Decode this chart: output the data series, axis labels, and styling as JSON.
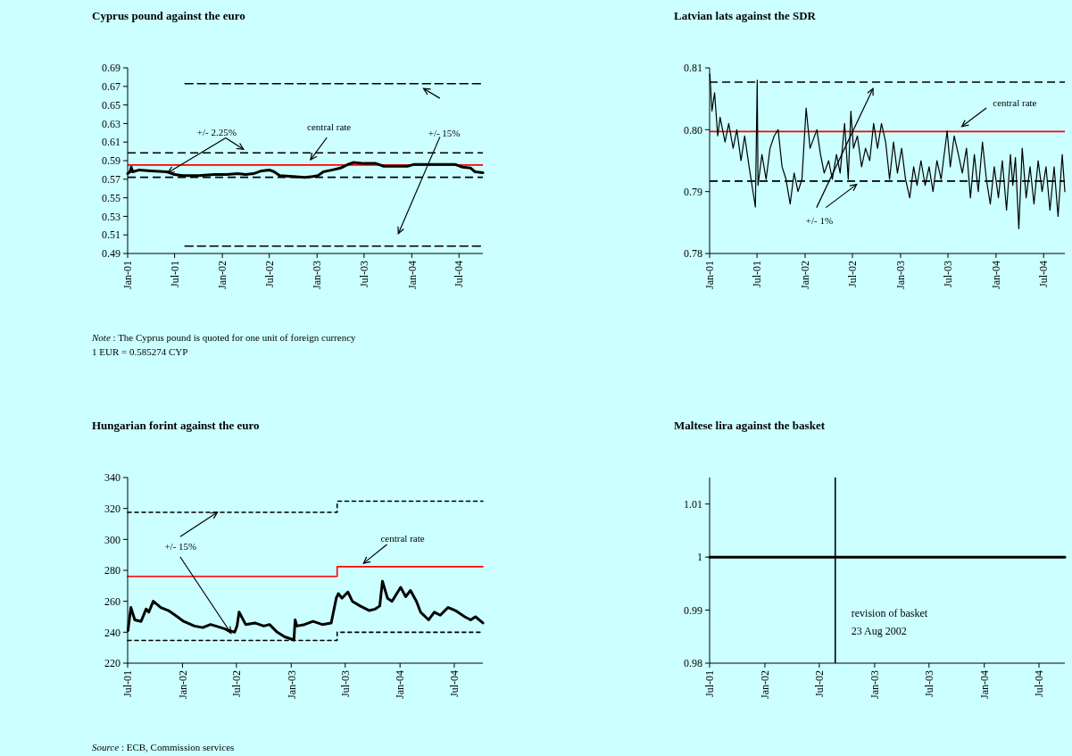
{
  "chart_data": [
    {
      "type": "line",
      "title": "Cyprus pound against the euro",
      "xlim": [
        "2001-01-01",
        "2004-10-01"
      ],
      "ylim": [
        0.49,
        0.69
      ],
      "yticks": [
        0.49,
        0.51,
        0.53,
        0.55,
        0.57,
        0.59,
        0.61,
        0.63,
        0.65,
        0.67,
        0.69
      ],
      "xticks": [
        {
          "value": "2001-01-01",
          "label": "Jan-01"
        },
        {
          "value": "2001-07-01",
          "label": "Jul-01"
        },
        {
          "value": "2002-01-01",
          "label": "Jan-02"
        },
        {
          "value": "2002-07-01",
          "label": "Jul-02"
        },
        {
          "value": "2003-01-01",
          "label": "Jan-03"
        },
        {
          "value": "2003-07-01",
          "label": "Jul-03"
        },
        {
          "value": "2004-01-01",
          "label": "Jan-04"
        },
        {
          "value": "2004-07-01",
          "label": "Jul-04"
        }
      ],
      "series": [
        {
          "color": "#000000",
          "x": [
            "2001-01-01",
            "2001-01-10",
            "2001-01-15",
            "2001-01-20",
            "2001-02-15",
            "2001-04-01",
            "2001-06-01",
            "2001-07-01",
            "2001-08-01",
            "2001-10-01",
            "2001-12-01",
            "2002-01-15",
            "2002-03-01",
            "2002-04-01",
            "2002-05-01",
            "2002-06-01",
            "2002-07-01",
            "2002-07-20",
            "2002-08-10",
            "2002-10-01",
            "2002-11-15",
            "2002-12-15",
            "2003-01-05",
            "2003-01-25",
            "2003-03-01",
            "2003-04-01",
            "2003-05-01",
            "2003-05-20",
            "2003-07-01",
            "2003-08-15",
            "2003-09-15",
            "2003-11-01",
            "2003-12-15",
            "2004-01-10",
            "2004-03-01",
            "2004-06-15",
            "2004-07-15",
            "2004-08-15",
            "2004-09-01",
            "2004-10-01"
          ],
          "values": [
            0.576,
            0.578,
            0.583,
            0.578,
            0.58,
            0.579,
            0.578,
            0.575,
            0.574,
            0.574,
            0.575,
            0.575,
            0.576,
            0.575,
            0.576,
            0.579,
            0.58,
            0.578,
            0.574,
            0.573,
            0.572,
            0.573,
            0.574,
            0.578,
            0.58,
            0.582,
            0.586,
            0.588,
            0.587,
            0.587,
            0.584,
            0.584,
            0.584,
            0.586,
            0.586,
            0.586,
            0.583,
            0.582,
            0.578,
            0.577
          ]
        },
        {
          "color": "#000000",
          "line_style": "dashed",
          "x": [
            "2001-08-10",
            "2004-10-01"
          ],
          "values": [
            0.673,
            0.673
          ]
        },
        {
          "color": "#000000",
          "line_style": "dashed",
          "x": [
            "2001-08-10",
            "2004-10-01"
          ],
          "values": [
            0.498,
            0.498
          ]
        }
      ],
      "ref_lines": [
        {
          "axis": "y",
          "value": 0.585274,
          "color": "#ff0000",
          "line_style": "solid"
        },
        {
          "axis": "y",
          "value": 0.5984,
          "color": "#000000",
          "line_style": "dashed"
        },
        {
          "axis": "y",
          "value": 0.5721,
          "color": "#000000",
          "line_style": "dashed"
        }
      ],
      "annotations": [
        {
          "text": "+/- 2.25%",
          "x": "2001-06-05",
          "y": 0.577
        },
        "central rate",
        "+/- 15%",
        "Note : The Cyprus pound is quoted for one unit of foreign currency",
        "1 EUR = 0.585274 CYP"
      ]
    },
    {
      "type": "line",
      "title": "Latvian lats against the SDR",
      "xlim": [
        "2001-01-01",
        "2004-09-20"
      ],
      "ylim": [
        0.78,
        0.81
      ],
      "yticks": [
        {
          "value": 0.78,
          "label": "0.78"
        },
        {
          "value": 0.79,
          "label": "0.79"
        },
        {
          "value": 0.8,
          "label": "0.80"
        },
        {
          "value": 0.81,
          "label": "0.81"
        }
      ],
      "xticks": [
        {
          "value": "2001-01-01",
          "label": "Jan-01"
        },
        {
          "value": "2001-07-01",
          "label": "Jul-01"
        },
        {
          "value": "2002-01-01",
          "label": "Jan-02"
        },
        {
          "value": "2002-07-01",
          "label": "Jul-02"
        },
        {
          "value": "2003-01-01",
          "label": "Jan-03"
        },
        {
          "value": "2003-07-01",
          "label": "Jul-03"
        },
        {
          "value": "2004-01-01",
          "label": "Jan-04"
        },
        {
          "value": "2004-07-01",
          "label": "Jul-04"
        }
      ],
      "series": [
        {
          "color": "#000000",
          "x": [
            "2001-01-02",
            "2001-01-10",
            "2001-01-20",
            "2001-02-01",
            "2001-02-10",
            "2001-03-01",
            "2001-03-15",
            "2001-04-01",
            "2001-04-15",
            "2001-05-01",
            "2001-05-15",
            "2001-06-01",
            "2001-06-25",
            "2001-07-02",
            "2001-07-05",
            "2001-07-20",
            "2001-08-05",
            "2001-08-20",
            "2001-09-05",
            "2001-09-20",
            "2001-10-05",
            "2001-10-20",
            "2001-11-05",
            "2001-11-20",
            "2001-12-05",
            "2001-12-20",
            "2002-01-05",
            "2002-01-20",
            "2002-02-15",
            "2002-03-01",
            "2002-03-15",
            "2002-04-01",
            "2002-04-15",
            "2002-05-01",
            "2002-05-15",
            "2002-06-01",
            "2002-06-15",
            "2002-06-25",
            "2002-07-05",
            "2002-07-20",
            "2002-08-05",
            "2002-08-20",
            "2002-09-05",
            "2002-09-20",
            "2002-10-05",
            "2002-10-20",
            "2002-11-05",
            "2002-11-20",
            "2002-12-05",
            "2002-12-20",
            "2003-01-05",
            "2003-01-20",
            "2003-02-05",
            "2003-02-20",
            "2003-03-05",
            "2003-03-20",
            "2003-04-05",
            "2003-04-20",
            "2003-05-05",
            "2003-05-20",
            "2003-06-05",
            "2003-06-28",
            "2003-07-10",
            "2003-07-25",
            "2003-08-10",
            "2003-08-25",
            "2003-09-10",
            "2003-09-25",
            "2003-10-10",
            "2003-10-25",
            "2003-11-10",
            "2003-11-25",
            "2003-12-10",
            "2003-12-25",
            "2004-01-10",
            "2004-01-25",
            "2004-02-10",
            "2004-02-25",
            "2004-03-05",
            "2004-03-15",
            "2004-03-28",
            "2004-04-10",
            "2004-04-25",
            "2004-05-10",
            "2004-05-25",
            "2004-06-10",
            "2004-06-25",
            "2004-07-10",
            "2004-07-25",
            "2004-08-10",
            "2004-08-25",
            "2004-09-10",
            "2004-09-20"
          ],
          "values": [
            0.809,
            0.803,
            0.806,
            0.799,
            0.802,
            0.798,
            0.801,
            0.797,
            0.8,
            0.795,
            0.799,
            0.794,
            0.7875,
            0.808,
            0.791,
            0.796,
            0.792,
            0.797,
            0.799,
            0.8,
            0.794,
            0.792,
            0.788,
            0.793,
            0.79,
            0.792,
            0.8035,
            0.797,
            0.8,
            0.796,
            0.793,
            0.795,
            0.792,
            0.796,
            0.793,
            0.801,
            0.792,
            0.803,
            0.797,
            0.799,
            0.794,
            0.797,
            0.795,
            0.801,
            0.797,
            0.801,
            0.798,
            0.792,
            0.798,
            0.793,
            0.797,
            0.792,
            0.789,
            0.794,
            0.791,
            0.795,
            0.791,
            0.794,
            0.79,
            0.795,
            0.792,
            0.7998,
            0.794,
            0.799,
            0.796,
            0.793,
            0.797,
            0.789,
            0.796,
            0.79,
            0.798,
            0.792,
            0.788,
            0.794,
            0.789,
            0.795,
            0.787,
            0.796,
            0.791,
            0.7955,
            0.784,
            0.797,
            0.789,
            0.794,
            0.788,
            0.795,
            0.79,
            0.794,
            0.787,
            0.794,
            0.786,
            0.796,
            0.79
          ]
        }
      ],
      "ref_lines": [
        {
          "axis": "y",
          "value": 0.7997,
          "color": "#ff0000",
          "line_style": "solid"
        },
        {
          "axis": "y",
          "value": 0.8077,
          "color": "#000000",
          "line_style": "dashed"
        },
        {
          "axis": "y",
          "value": 0.7917,
          "color": "#000000",
          "line_style": "dashed"
        }
      ],
      "annotations": [
        "central rate",
        "+/- 1%"
      ]
    },
    {
      "type": "line",
      "title": "Hungarian forint against the euro",
      "xlim": [
        "2001-07-01",
        "2004-10-05"
      ],
      "ylim": [
        220,
        340
      ],
      "yticks": [
        220,
        240,
        260,
        280,
        300,
        320,
        340
      ],
      "xticks": [
        {
          "value": "2001-07-01",
          "label": "Jul-01"
        },
        {
          "value": "2002-01-01",
          "label": "Jan-02"
        },
        {
          "value": "2002-07-01",
          "label": "Jul-02"
        },
        {
          "value": "2003-01-01",
          "label": "Jan-03"
        },
        {
          "value": "2003-07-01",
          "label": "Jul-03"
        },
        {
          "value": "2004-01-01",
          "label": "Jan-04"
        },
        {
          "value": "2004-07-01",
          "label": "Jul-04"
        }
      ],
      "series": [
        {
          "color": "#000000",
          "x": [
            "2001-07-02",
            "2001-07-12",
            "2001-07-25",
            "2001-08-15",
            "2001-09-01",
            "2001-09-10",
            "2001-09-25",
            "2001-10-20",
            "2001-11-15",
            "2001-12-15",
            "2002-01-05",
            "2002-02-10",
            "2002-03-10",
            "2002-04-05",
            "2002-05-10",
            "2002-06-10",
            "2002-06-25",
            "2002-07-03",
            "2002-07-10",
            "2002-08-01",
            "2002-09-01",
            "2002-10-01",
            "2002-10-20",
            "2002-11-15",
            "2002-12-10",
            "2003-01-10",
            "2003-01-14",
            "2003-01-20",
            "2003-02-15",
            "2003-03-15",
            "2003-04-15",
            "2003-05-15",
            "2003-06-01",
            "2003-06-08",
            "2003-06-20",
            "2003-07-10",
            "2003-07-25",
            "2003-08-20",
            "2003-09-20",
            "2003-10-10",
            "2003-10-25",
            "2003-11-03",
            "2003-11-20",
            "2003-12-05",
            "2004-01-03",
            "2004-01-20",
            "2004-02-05",
            "2004-02-25",
            "2004-03-10",
            "2004-04-06",
            "2004-04-25",
            "2004-05-15",
            "2004-06-10",
            "2004-07-05",
            "2004-08-05",
            "2004-08-25",
            "2004-09-10",
            "2004-10-05"
          ],
          "values": [
            241,
            256,
            248,
            247,
            255,
            253,
            260,
            256,
            254,
            250,
            247,
            244,
            243,
            245,
            243,
            241,
            240,
            244,
            253,
            245,
            246,
            244,
            245,
            240,
            237,
            235,
            248,
            244,
            245,
            247,
            245,
            246,
            262,
            265,
            262,
            266,
            260,
            257,
            254,
            255,
            257,
            273,
            262,
            260,
            269,
            263,
            267,
            260,
            253,
            248,
            253,
            251,
            256,
            254,
            250,
            248,
            250,
            246
          ]
        },
        {
          "color": "#ff0000",
          "line_style": "solid",
          "x": [
            "2001-07-01",
            "2003-06-04",
            "2003-06-04",
            "2004-10-05"
          ],
          "values": [
            276.1,
            276.1,
            282.4,
            282.4
          ]
        },
        {
          "color": "#000000",
          "line_style": "dotted",
          "x": [
            "2001-07-01",
            "2003-06-04",
            "2003-06-04",
            "2004-10-05"
          ],
          "values": [
            317.5,
            317.5,
            324.7,
            324.7
          ]
        },
        {
          "color": "#000000",
          "line_style": "dotted",
          "x": [
            "2001-07-01",
            "2003-06-04",
            "2003-06-04",
            "2004-10-05"
          ],
          "values": [
            234.7,
            234.7,
            240,
            240
          ]
        }
      ],
      "annotations": [
        {
          "text": "+/- 15%",
          "x": "2002-04-28",
          "y": 317.5
        },
        "central rate",
        "Source : ECB, Commission services"
      ]
    },
    {
      "type": "line",
      "title": "Maltese lira against the basket",
      "xlim": [
        "2001-07-01",
        "2004-09-25"
      ],
      "ylim": [
        0.98,
        1.015
      ],
      "yticks": [
        0.98,
        0.99,
        1,
        1.01
      ],
      "xticks": [
        {
          "value": "2001-07-01",
          "label": "Jul-01"
        },
        {
          "value": "2002-01-01",
          "label": "Jan-02"
        },
        {
          "value": "2002-07-01",
          "label": "Jul-02"
        },
        {
          "value": "2003-01-01",
          "label": "Jan-03"
        },
        {
          "value": "2003-07-01",
          "label": "Jul-03"
        },
        {
          "value": "2004-01-01",
          "label": "Jan-04"
        },
        {
          "value": "2004-07-01",
          "label": "Jul-04"
        }
      ],
      "series": [
        {
          "color": "#000000",
          "x": [
            "2001-07-01",
            "2004-09-25"
          ],
          "values": [
            1,
            1
          ]
        }
      ],
      "ref_lines": [
        {
          "axis": "x",
          "value": "2002-08-23",
          "color": "#000000",
          "line_style": "solid",
          "label": "revision of basket 23 Aug 2002"
        }
      ]
    }
  ]
}
